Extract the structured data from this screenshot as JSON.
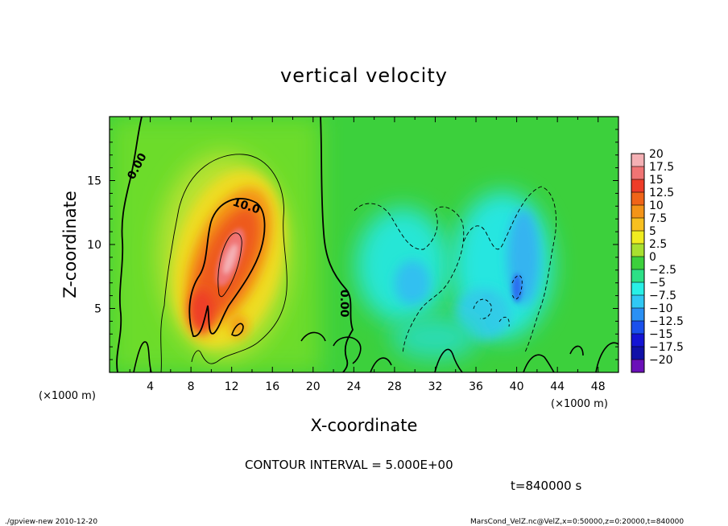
{
  "chart_data": {
    "type": "heatmap",
    "title": "vertical velocity",
    "xlabel": "X-coordinate",
    "ylabel": "Z-coordinate",
    "x_unit": "(×1000 m)",
    "y_unit": "(×1000 m)",
    "xlim": [
      0,
      50
    ],
    "ylim": [
      0,
      20
    ],
    "x_ticks": [
      4,
      8,
      12,
      16,
      20,
      24,
      28,
      32,
      36,
      40,
      44,
      48
    ],
    "y_ticks": [
      5,
      10,
      15
    ],
    "colorbar": {
      "levels": [
        "20",
        "17.5",
        "15",
        "12.5",
        "10",
        "7.5",
        "5",
        "2.5",
        "0",
        "−2.5",
        "−5",
        "−7.5",
        "−10",
        "−12.5",
        "−15",
        "−17.5",
        "−20"
      ],
      "colors": [
        "#f4b0b4",
        "#f07474",
        "#ee3c28",
        "#f06418",
        "#f49418",
        "#f8c020",
        "#f0ec20",
        "#a8e030",
        "#3cd03c",
        "#2ce086",
        "#28f0e6",
        "#30c8f4",
        "#2a90f4",
        "#1a50ec",
        "#1414d4",
        "#1010a8",
        "#6a10b8"
      ]
    },
    "contour_labels": [
      "0.00",
      "10.0",
      "0.00"
    ],
    "contour_interval": "CONTOUR INTERVAL = 5.000E+00",
    "time": "t=840000 s",
    "footer_left": "./gpview-new  2010-12-20",
    "footer_right": "MarsCond_VelZ.nc@VelZ,x=0:50000,z=0:20000,t=840000"
  }
}
